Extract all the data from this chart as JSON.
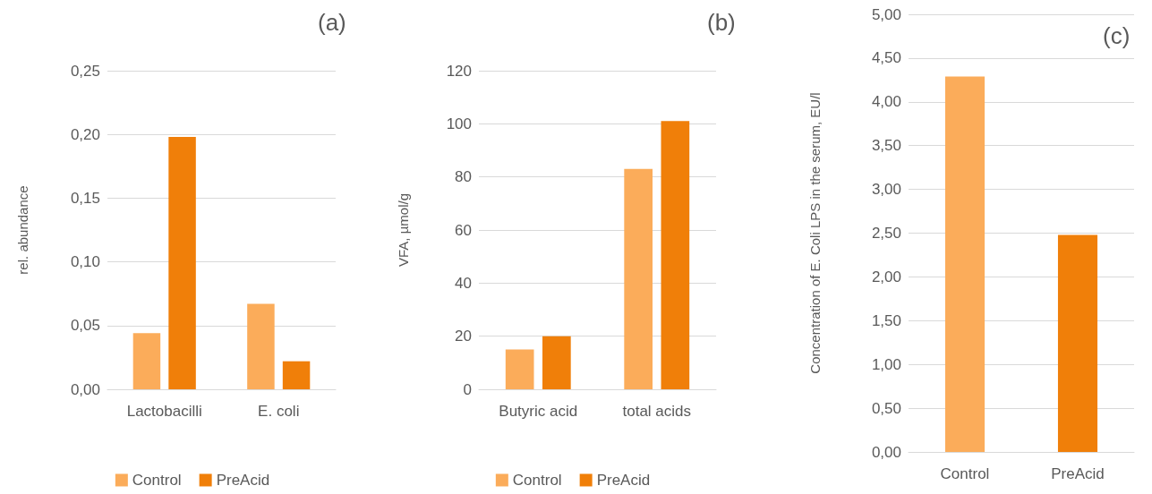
{
  "chart_data": [
    {
      "type": "bar",
      "ylabel": "rel. abundance",
      "categories": [
        "Lactobacilli",
        "E. coli"
      ],
      "series": [
        {
          "name": "Control",
          "color": "#fbac5a",
          "values": [
            0.044,
            0.067
          ]
        },
        {
          "name": "PreAcid",
          "color": "#f07f09",
          "values": [
            0.198,
            0.022
          ]
        }
      ],
      "ylim": [
        0,
        0.25
      ],
      "yticks": [
        {
          "value": 0,
          "label": "0,00"
        },
        {
          "value": 0.05,
          "label": "0,05"
        },
        {
          "value": 0.1,
          "label": "0,10"
        },
        {
          "value": 0.15,
          "label": "0,15"
        },
        {
          "value": 0.2,
          "label": "0,20"
        },
        {
          "value": 0.25,
          "label": "0,25"
        }
      ],
      "grid": "y",
      "legend": "bottom",
      "annotations": [
        "(a)"
      ]
    },
    {
      "type": "bar",
      "ylabel": "VFA, µmol/g",
      "categories": [
        "Butyric acid",
        "total acids"
      ],
      "series": [
        {
          "name": "Control",
          "color": "#fbac5a",
          "values": [
            15,
            83
          ]
        },
        {
          "name": "PreAcid",
          "color": "#f07f09",
          "values": [
            20,
            101
          ]
        }
      ],
      "ylim": [
        0,
        120
      ],
      "yticks": [
        0,
        20,
        40,
        60,
        80,
        100,
        120
      ],
      "grid": "y",
      "legend": "bottom",
      "annotations": [
        "(b)"
      ]
    },
    {
      "type": "bar",
      "ylabel": "Concentration of E. Coli LPS in the serum, EU/l",
      "categories": [
        "Control",
        "PreAcid"
      ],
      "values": [
        4.29,
        2.48
      ],
      "colors": [
        "#fbac5a",
        "#f07f09"
      ],
      "ylim": [
        0,
        5
      ],
      "yticks": [
        {
          "value": 0,
          "label": "0,00"
        },
        {
          "value": 0.5,
          "label": "0,50"
        },
        {
          "value": 1,
          "label": "1,00"
        },
        {
          "value": 1.5,
          "label": "1,50"
        },
        {
          "value": 2,
          "label": "2,00"
        },
        {
          "value": 2.5,
          "label": "2,50"
        },
        {
          "value": 3,
          "label": "3,00"
        },
        {
          "value": 3.5,
          "label": "3,50"
        },
        {
          "value": 4,
          "label": "4,00"
        },
        {
          "value": 4.5,
          "label": "4,50"
        },
        {
          "value": 5,
          "label": "5,00"
        }
      ],
      "grid": "y",
      "legend": false,
      "annotations": [
        "(c)"
      ]
    }
  ]
}
